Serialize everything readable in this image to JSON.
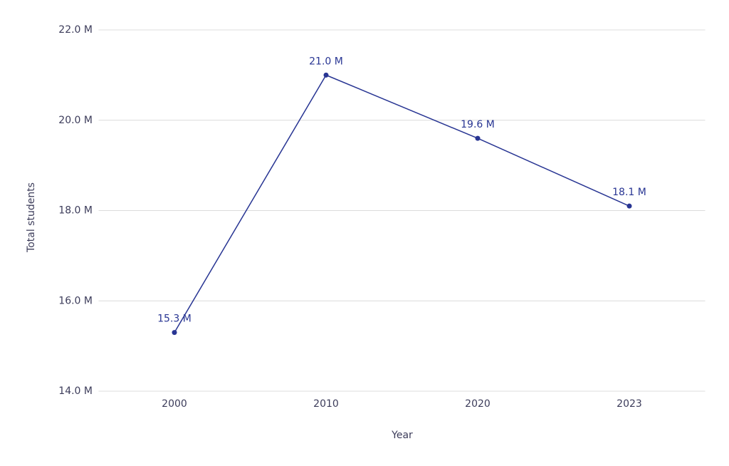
{
  "chart_data": {
    "type": "line",
    "x_label": "Year",
    "y_label": "Total students",
    "categories": [
      "2000",
      "2010",
      "2020",
      "2023"
    ],
    "series": [
      {
        "name": "Total students",
        "color": "#283593",
        "values": [
          15.3,
          21.0,
          19.6,
          18.1
        ],
        "value_labels": [
          "15.3 M",
          "21.0 M",
          "19.6 M",
          "18.1 M"
        ]
      }
    ],
    "ylim": [
      14,
      22
    ],
    "yticks": [
      {
        "value": 14,
        "label": "14.0 M"
      },
      {
        "value": 16,
        "label": "16.0 M"
      },
      {
        "value": 18,
        "label": "18.0 M"
      },
      {
        "value": 20,
        "label": "20.0 M"
      },
      {
        "value": 22,
        "label": "22.0 M"
      }
    ],
    "grid": true
  }
}
